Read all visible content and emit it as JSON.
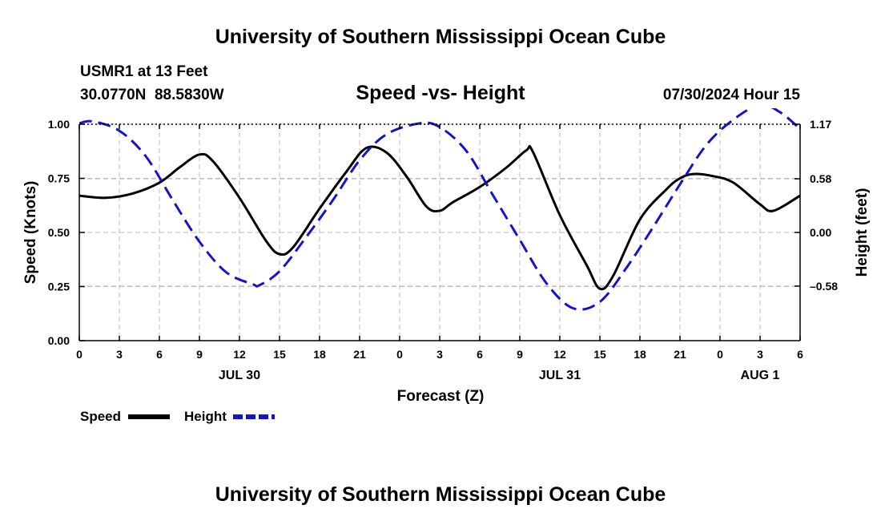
{
  "header": {
    "title": "University of Southern Mississippi Ocean Cube",
    "station": "USMR1 at 13 Feet",
    "coords": "30.0770N  88.5830W",
    "datetime": "07/30/2024 Hour 15",
    "footer_title": "University of Southern Mississippi Ocean Cube"
  },
  "legend": {
    "speed_label": "Speed",
    "height_label": "Height"
  },
  "colors": {
    "speed": "#000000",
    "height": "#1515c8"
  },
  "chart_data": {
    "type": "line",
    "title": "Speed -vs- Height",
    "xlabel": "Forecast (Z)",
    "ylabel": "Speed (Knots)",
    "y2label": "Height (feet)",
    "x_range_hours": [
      0,
      54
    ],
    "ylim": [
      0,
      1
    ],
    "y2lim": [
      -1.17,
      1.17
    ],
    "x_ticks": [
      {
        "h": 0,
        "label": "0"
      },
      {
        "h": 3,
        "label": "3"
      },
      {
        "h": 6,
        "label": "6"
      },
      {
        "h": 9,
        "label": "9"
      },
      {
        "h": 12,
        "label": "12"
      },
      {
        "h": 15,
        "label": "15"
      },
      {
        "h": 18,
        "label": "18"
      },
      {
        "h": 21,
        "label": "21"
      },
      {
        "h": 24,
        "label": "0"
      },
      {
        "h": 27,
        "label": "3"
      },
      {
        "h": 30,
        "label": "6"
      },
      {
        "h": 33,
        "label": "9"
      },
      {
        "h": 36,
        "label": "12"
      },
      {
        "h": 39,
        "label": "15"
      },
      {
        "h": 42,
        "label": "18"
      },
      {
        "h": 45,
        "label": "21"
      },
      {
        "h": 48,
        "label": "0"
      },
      {
        "h": 51,
        "label": "3"
      },
      {
        "h": 54,
        "label": "6"
      }
    ],
    "date_labels": [
      {
        "h": 12,
        "label": "JUL 30"
      },
      {
        "h": 36,
        "label": "JUL 31"
      },
      {
        "h": 51,
        "label": "AUG 1"
      }
    ],
    "y_ticks": [
      {
        "v": 0,
        "label": "0.00"
      },
      {
        "v": 0.25,
        "label": "0.25"
      },
      {
        "v": 0.5,
        "label": "0.50"
      },
      {
        "v": 0.75,
        "label": "0.75"
      },
      {
        "v": 1,
        "label": "1.00"
      }
    ],
    "y2_ticks": [
      {
        "v": 1.17,
        "label": "1.17"
      },
      {
        "v": 0.58,
        "label": "0.58"
      },
      {
        "v": 0.0,
        "label": "0.00"
      },
      {
        "v": -0.58,
        "label": "–0.58"
      }
    ],
    "series": [
      {
        "name": "Speed",
        "axis": "left",
        "x": [
          0,
          2,
          4,
          6,
          7.5,
          9,
          10,
          12,
          14,
          15,
          16,
          18,
          20,
          21.5,
          23,
          24.5,
          26,
          27,
          28,
          30,
          32,
          33.5,
          34,
          36,
          38,
          39,
          40,
          42,
          44,
          45,
          46,
          47.5,
          49,
          51,
          52,
          54
        ],
        "values": [
          0.67,
          0.66,
          0.68,
          0.73,
          0.8,
          0.86,
          0.83,
          0.66,
          0.46,
          0.4,
          0.43,
          0.61,
          0.78,
          0.89,
          0.87,
          0.76,
          0.62,
          0.6,
          0.64,
          0.71,
          0.8,
          0.88,
          0.87,
          0.58,
          0.35,
          0.24,
          0.3,
          0.56,
          0.7,
          0.75,
          0.77,
          0.76,
          0.73,
          0.63,
          0.6,
          0.67
        ]
      },
      {
        "name": "Height",
        "axis": "right",
        "x": [
          0,
          1,
          3,
          5,
          7,
          9,
          11,
          13,
          13.5,
          15,
          17,
          19,
          21,
          23,
          25.5,
          27,
          29,
          31,
          33,
          35,
          37,
          39,
          41,
          43,
          45,
          47,
          49,
          51,
          52.5,
          54
        ],
        "values": [
          1.18,
          1.2,
          1.1,
          0.82,
          0.35,
          -0.1,
          -0.43,
          -0.56,
          -0.57,
          -0.42,
          -0.05,
          0.35,
          0.78,
          1.06,
          1.18,
          1.14,
          0.88,
          0.4,
          -0.08,
          -0.55,
          -0.82,
          -0.75,
          -0.38,
          0.06,
          0.52,
          0.95,
          1.22,
          1.38,
          1.3,
          1.12
        ]
      }
    ]
  }
}
